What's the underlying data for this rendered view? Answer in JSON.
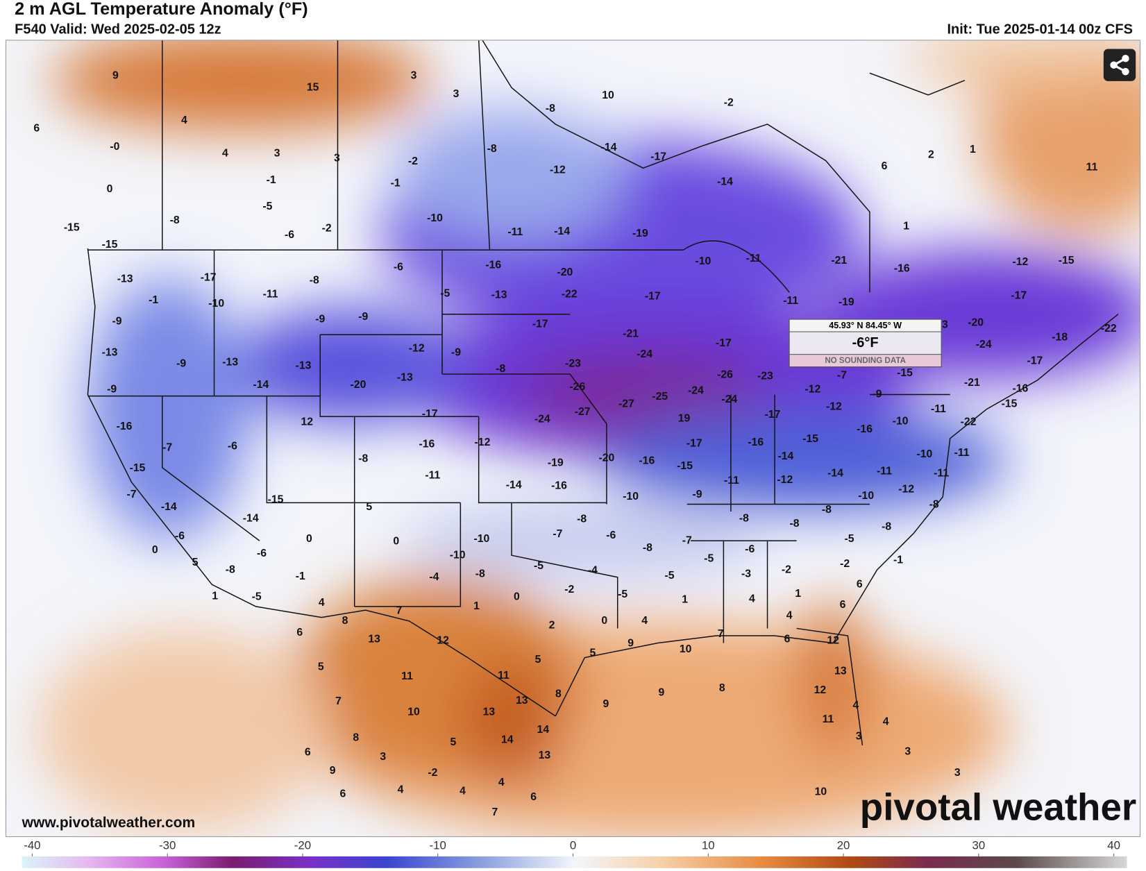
{
  "header": {
    "title": "2 m AGL Temperature Anomaly (°F)",
    "valid": "F540 Valid: Wed 2025-02-05 12z",
    "init": "Init: Tue 2025-01-14 00z CFS"
  },
  "popup": {
    "coords": "45.93° N 84.45° W",
    "value": "-6°F",
    "note": "NO SOUNDING DATA"
  },
  "footer": {
    "site": "www.pivotalweather.com",
    "brand": "pivotal weather"
  },
  "colorbar": {
    "lim": [
      -40,
      40
    ],
    "ticks": [
      -40,
      -30,
      -20,
      -10,
      0,
      10,
      20,
      30,
      40
    ]
  },
  "map": {
    "labels": [
      "9",
      "15",
      "3",
      "6",
      "4",
      "-0",
      "4",
      "3",
      "3",
      "-2",
      "-1",
      "0",
      "-1",
      "-5",
      "-8",
      "-6",
      "-2",
      "-10",
      "-11",
      "-14",
      "-19",
      "-15",
      "-15",
      "-13",
      "-1",
      "-17",
      "-10",
      "-11",
      "-8",
      "-6",
      "-5",
      "-16",
      "-13",
      "-20",
      "-22",
      "-17",
      "-17",
      "-10",
      "-11",
      "-11",
      "-21",
      "-16",
      "-19",
      "-12",
      "-15",
      "-17",
      "-9",
      "-9",
      "-9",
      "-13",
      "-9",
      "-13",
      "-13",
      "-12",
      "-9",
      "-21",
      "-24",
      "-23",
      "-8",
      "-17",
      "-9",
      "-14",
      "-20",
      "-13",
      "-26",
      "-27",
      "-25",
      "-24",
      "-26",
      "-23",
      "-24",
      "-12",
      "-7",
      "-15",
      "-20",
      "-24",
      "-18",
      "-22",
      "-17",
      "-21",
      "-16",
      "-15",
      "-9",
      "-12",
      "-16",
      "-7",
      "-6",
      "12",
      "-17",
      "-24",
      "-27",
      "19",
      "-17",
      "-10",
      "-11",
      "-22",
      "-16",
      "-12",
      "-17",
      "-16",
      "-15",
      "-16",
      "-8",
      "-15",
      "-19",
      "-20",
      "-16",
      "-15",
      "-14",
      "-10",
      "-11",
      "-11",
      "-14",
      "-16",
      "-12",
      "-14",
      "-11",
      "-11",
      "-11",
      "-7",
      "-15",
      "-10",
      "-9",
      "-10",
      "-12",
      "-14",
      "-14",
      "5",
      "-8",
      "-8",
      "-8",
      "-8",
      "-8",
      "-8",
      "-6",
      "0",
      "0",
      "-10",
      "-7",
      "-6",
      "-7",
      "-6",
      "-8",
      "-5",
      "-6",
      "-5",
      "0",
      "5",
      "-8",
      "-10",
      "-5",
      "-4",
      "-2",
      "-2",
      "-1",
      "-1",
      "-4",
      "-8",
      "-3",
      "-5",
      "6",
      "1",
      "-5",
      "4",
      "0",
      "-2",
      "-5",
      "1",
      "4",
      "1",
      "6",
      "1",
      "8",
      "7",
      "2",
      "0",
      "4",
      "4",
      "6",
      "13",
      "12",
      "9",
      "10",
      "7",
      "6",
      "12",
      "5",
      "5",
      "5",
      "11",
      "11",
      "13",
      "12",
      "7",
      "8",
      "9",
      "8",
      "9",
      "13",
      "4",
      "10",
      "13",
      "14",
      "11",
      "4",
      "8",
      "5",
      "14",
      "3",
      "6",
      "3",
      "13",
      "3",
      "9",
      "-2",
      "4",
      "3",
      "4",
      "4",
      "6",
      "6",
      "7",
      "10",
      "-2",
      "-8",
      "10",
      "-8",
      "-14",
      "-17",
      "-12",
      "-14",
      "3",
      "2",
      "1",
      "11",
      "1",
      "3",
      "6"
    ]
  }
}
